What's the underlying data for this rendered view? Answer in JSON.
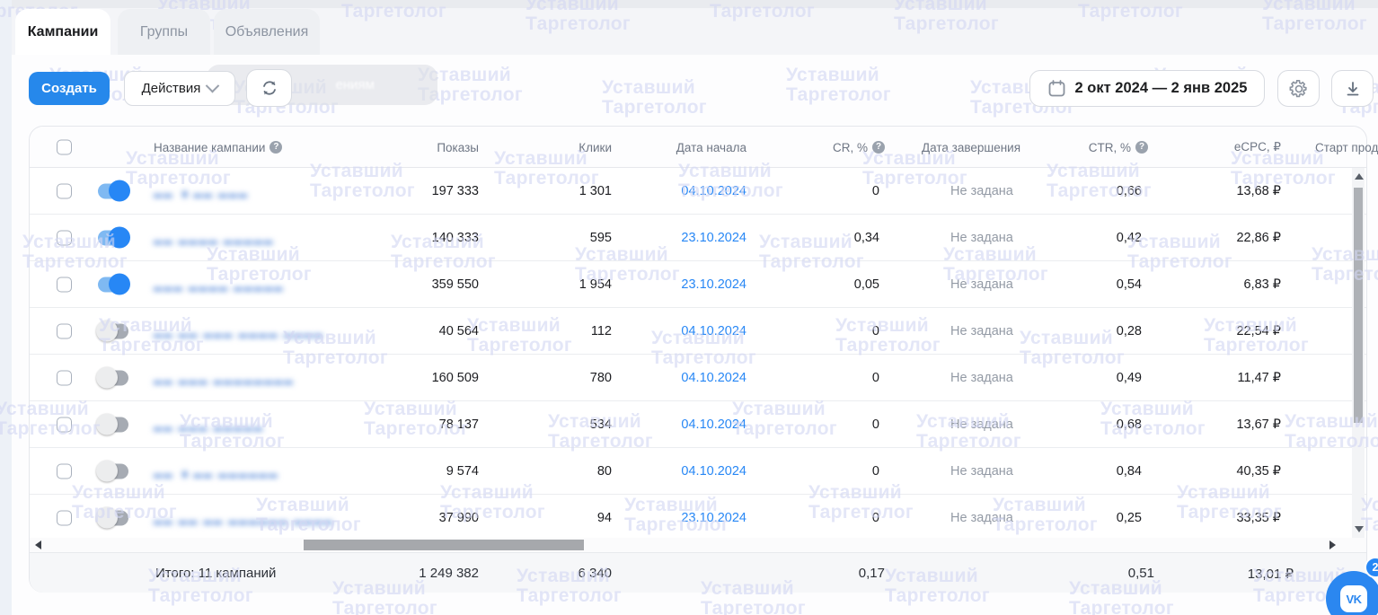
{
  "tabs": [
    {
      "label": "Кампании",
      "active": true
    },
    {
      "label": "Группы",
      "active": false
    },
    {
      "label": "Объявления",
      "active": false
    }
  ],
  "toolbar": {
    "create_label": "Создать",
    "actions_label": "Действия",
    "redacted_pill_fragment": "ениям",
    "date_range": "2 окт 2024 — 2 янв 2025"
  },
  "table": {
    "columns": {
      "name": "Название кампании",
      "impressions": "Показы",
      "clicks": "Клики",
      "date_start": "Дата начала",
      "cr": "CR, %",
      "date_end": "Дата завершения",
      "ctr": "CTR, %",
      "ecpc": "eCPC, ₽",
      "start_pro": "Старт прод"
    },
    "rows": [
      {
        "enabled": true,
        "redacted": "▂▂ ▗ ▂▂ ▂▂▂",
        "impressions": "197 333",
        "clicks": "1 301",
        "date_start": "04.10.2024",
        "cr": "0",
        "date_end": "Не задана",
        "ctr": "0,66",
        "ecpc": "13,68 ₽"
      },
      {
        "enabled": true,
        "redacted": "▂▂ ▂▂▂▂ ▂▂▂▂▂",
        "impressions": "140 333",
        "clicks": "595",
        "date_start": "23.10.2024",
        "cr": "0,34",
        "date_end": "Не задана",
        "ctr": "0,42",
        "ecpc": "22,86 ₽"
      },
      {
        "enabled": true,
        "redacted": "▂▂▂ ▂▂▂▂ ▂▂▂▂▂",
        "impressions": "359 550",
        "clicks": "1 954",
        "date_start": "23.10.2024",
        "cr": "0,05",
        "date_end": "Не задана",
        "ctr": "0,54",
        "ecpc": "6,83 ₽"
      },
      {
        "enabled": false,
        "redacted": "▂▂ ▂▂ ▂▂▂ ▂▂▂▂ ▂▂▂▂",
        "impressions": "40 564",
        "clicks": "112",
        "date_start": "04.10.2024",
        "cr": "0",
        "date_end": "Не задана",
        "ctr": "0,28",
        "ecpc": "22,54 ₽"
      },
      {
        "enabled": false,
        "redacted": "▂▂ ▂▂▂ ▂▂▂▂▂▂▂▂",
        "impressions": "160 509",
        "clicks": "780",
        "date_start": "04.10.2024",
        "cr": "0",
        "date_end": "Не задана",
        "ctr": "0,49",
        "ecpc": "11,47 ₽"
      },
      {
        "enabled": false,
        "redacted": "▂▂ ▂▂▂ ▂▂▂▂▂",
        "impressions": "78 137",
        "clicks": "534",
        "date_start": "04.10.2024",
        "cr": "0",
        "date_end": "Не задана",
        "ctr": "0,68",
        "ecpc": "13,67 ₽"
      },
      {
        "enabled": false,
        "redacted": "▂▂ ▗ ▂▂ ▂▂▂▂▂▂",
        "impressions": "9 574",
        "clicks": "80",
        "date_start": "04.10.2024",
        "cr": "0",
        "date_end": "Не задана",
        "ctr": "0,84",
        "ecpc": "40,35 ₽"
      },
      {
        "enabled": false,
        "redacted": "▂▂ ▂▂ ▂▂ ▂▂▂▂▂▂ ▂▂▂▂",
        "impressions": "37 990",
        "clicks": "94",
        "date_start": "23.10.2024",
        "cr": "0",
        "date_end": "Не задана",
        "ctr": "0,25",
        "ecpc": "33,35 ₽"
      }
    ],
    "footer": {
      "total": "Итого: 11 кампаний",
      "impressions": "1 249 382",
      "clicks": "6 340",
      "cr": "0,17",
      "ctr": "0,51",
      "ecpc": "13,01 ₽"
    }
  },
  "watermark": {
    "line1": "Уставший",
    "line2": "Таргетолог"
  },
  "chat": {
    "logo": "VK",
    "badge": "2"
  },
  "colors": {
    "accent_blue": "#2787f5",
    "link_blue": "#2787f5",
    "watermark": "#d3d7f3"
  }
}
